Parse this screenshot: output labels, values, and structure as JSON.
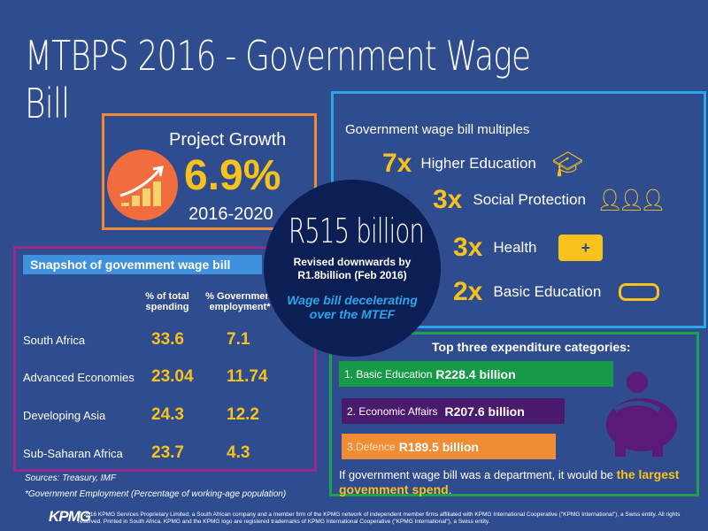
{
  "title": "MTBPS 2016 - Government Wage Bill",
  "growth": {
    "label": "Project Growth",
    "value": "6.9%",
    "period": "2016-2020",
    "icon": "rising-bar-chart-icon"
  },
  "circle": {
    "headline": "R515 billion",
    "revised": "Revised downwards by R1.8billion (Feb 2016)",
    "note": "Wage bill decelerating over the MTEF"
  },
  "multiples": {
    "heading": "Government wage bill multiples",
    "items": [
      {
        "mult": "7x",
        "label": "Higher Education",
        "icon": "graduation-cap-icon"
      },
      {
        "mult": "3x",
        "label": "Social Protection",
        "icon": "people-group-icon"
      },
      {
        "mult": "3x",
        "label": "Health",
        "icon": "ambulance-icon"
      },
      {
        "mult": "2x",
        "label": "Basic Education",
        "icon": "diploma-icon"
      }
    ]
  },
  "snapshot": {
    "heading": "Snapshot of govemment wage bill",
    "col1": "% of total spending",
    "col2": "% Government employment*",
    "rows": [
      {
        "country": "South Africa",
        "spending": "33.6",
        "employment": "7.1"
      },
      {
        "country": "Advanced Economies",
        "spending": "23.04",
        "employment": "11.74"
      },
      {
        "country": "Developing Asia",
        "spending": "24.3",
        "employment": "12.2"
      },
      {
        "country": "Sub-Saharan Africa",
        "spending": "23.7",
        "employment": "4.3"
      }
    ],
    "sources": "Sources: Treasury, IMF",
    "footnote": "*Government Employment (Percentage of working-age population)"
  },
  "expenditure": {
    "heading": "Top three expenditure categories:",
    "items": [
      {
        "label": "1. Basic Education",
        "amount": "R228.4  billion",
        "color": "#179a48"
      },
      {
        "label": "2. Economic Affairs",
        "amount": "R207.6 billion",
        "color": "#4a1a6e"
      },
      {
        "label": "3.Defence",
        "amount": "R189.5 billion",
        "color": "#f08c33"
      }
    ],
    "conclusion": "If government wage bill was a department, it would be ",
    "conclusion_highlight": "the largest govemment spend",
    "conclusion_end": "."
  },
  "footer": {
    "logo": "KPMG",
    "copyright": "© 2016 KPMG Services Proprietary Limited, a South African company and a member firm of the KPMG network of independent member firms affiliated with KPMG International Cooperative (\"KPMG International\"), a Swiss entity. All rights reserved. Printed in South Africa. KPMG and the KPMG logo are registered trademarks of KPMG International Cooperative (\"KPMG International\"), a Swiss entity."
  },
  "colors": {
    "background": "#2f4c8f",
    "accent_yellow": "#f7c21b",
    "orange": "#f08c33",
    "blue": "#2aa6e8",
    "purple": "#9b2a8f",
    "green": "#1ea14a",
    "navy": "#0c1f55"
  }
}
